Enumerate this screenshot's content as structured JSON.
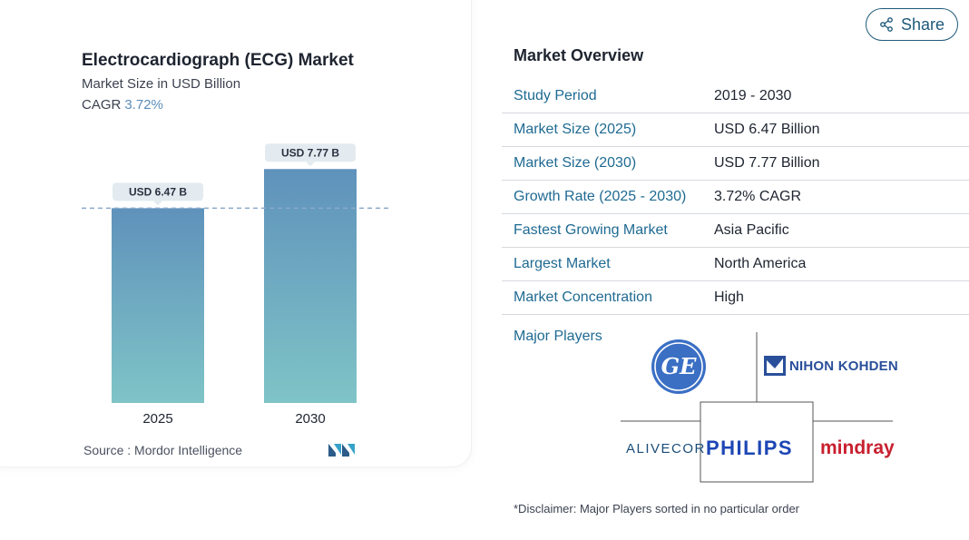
{
  "chart_data": {
    "type": "bar",
    "title": "Electrocardiograph (ECG) Market",
    "subtitle": "Market Size in USD Billion",
    "cagr_label": "CAGR",
    "cagr_value": "3.72%",
    "categories": [
      "2025",
      "2030"
    ],
    "values": [
      6.47,
      7.77
    ],
    "data_labels": [
      "USD 6.47 B",
      "USD 7.77 B"
    ],
    "reference_line": 6.47,
    "ylim": [
      0,
      8.2
    ],
    "xlabel": "",
    "ylabel": "",
    "grid": false,
    "bar_color_top": "#5f92bb",
    "bar_color_bottom": "#7fc4c7"
  },
  "source": "Source :  Mordor Intelligence",
  "share": {
    "label": "Share",
    "icon": "share-icon"
  },
  "overview": {
    "title": "Market Overview",
    "rows": [
      {
        "label": "Study Period",
        "value": "2019 - 2030"
      },
      {
        "label": "Market Size (2025)",
        "value": "USD 6.47 Billion"
      },
      {
        "label": "Market Size (2030)",
        "value": "USD 7.77 Billion"
      },
      {
        "label": "Growth Rate (2025 - 2030)",
        "value": "3.72% CAGR"
      },
      {
        "label": "Fastest Growing Market",
        "value": "Asia Pacific"
      },
      {
        "label": "Largest Market",
        "value": "North America"
      },
      {
        "label": "Market Concentration",
        "value": "High"
      }
    ]
  },
  "players": {
    "label": "Major Players",
    "logos": {
      "ge": "GE",
      "nihon_kohden": "NIHON KOHDEN",
      "alivecor": "ALIVECOR",
      "philips": "PHILIPS",
      "mindray": "mindray"
    }
  },
  "disclaimer": "*Disclaimer: Major Players sorted in no particular order"
}
